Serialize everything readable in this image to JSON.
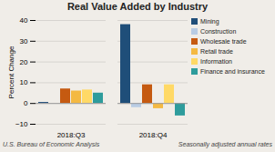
{
  "chart_data": {
    "type": "bar",
    "title": "Real Value Added by Industry",
    "ylabel": "Percent Change",
    "categories": [
      "2018:Q3",
      "2018:Q4"
    ],
    "series": [
      {
        "name": "Mining",
        "color": "#1f4e79",
        "values": [
          0.5,
          38
        ]
      },
      {
        "name": "Construction",
        "color": "#b8cce4",
        "values": [
          0,
          -2
        ]
      },
      {
        "name": "Wholesale trade",
        "color": "#c55a11",
        "values": [
          7,
          9
        ]
      },
      {
        "name": "Retail trade",
        "color": "#f4b942",
        "values": [
          6,
          -2.5
        ]
      },
      {
        "name": "Information",
        "color": "#ffd966",
        "values": [
          6.5,
          9
        ]
      },
      {
        "name": "Finance and insurance",
        "color": "#2e9c9c",
        "values": [
          5,
          -6
        ]
      }
    ],
    "ylim": [
      -10,
      40
    ],
    "yticks": [
      -10,
      0,
      10,
      20,
      30,
      40
    ],
    "grid": true,
    "legend": "right",
    "annotations": [
      "U.S. Bureau of Economic Analysis",
      "Seasonally adjusted annual rates"
    ]
  }
}
